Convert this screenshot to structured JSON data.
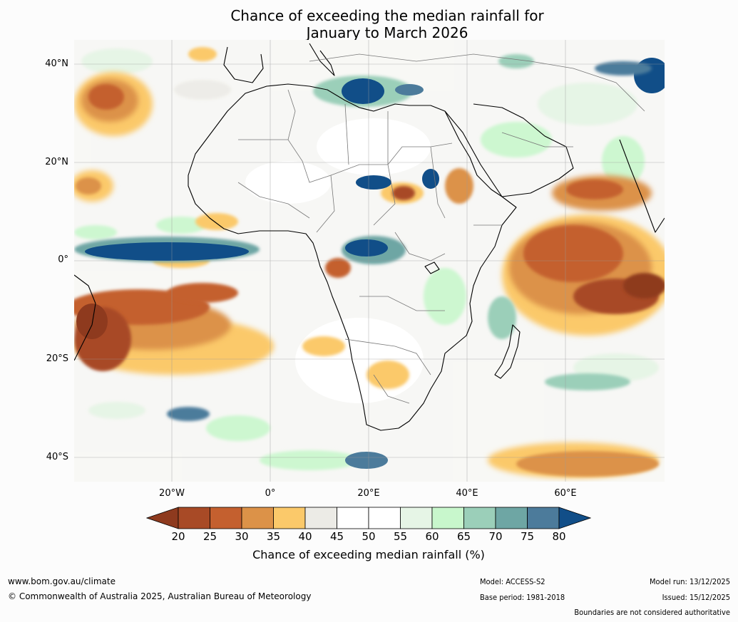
{
  "title": {
    "line1": "Chance of exceeding the median rainfall for",
    "line2": "January to March 2026"
  },
  "axes": {
    "lat_labels": [
      "40°N",
      "20°N",
      "0°",
      "20°S",
      "40°S"
    ],
    "lon_labels": [
      "20°W",
      "0°",
      "20°E",
      "40°E",
      "60°E"
    ],
    "lat_range": [
      -45,
      45
    ],
    "lon_range": [
      -40,
      80
    ]
  },
  "colorbar": {
    "ticks": [
      "20",
      "25",
      "30",
      "35",
      "40",
      "45",
      "50",
      "55",
      "60",
      "65",
      "70",
      "75",
      "80"
    ],
    "colors": [
      "#8e3a1e",
      "#a84a26",
      "#c4602f",
      "#dc9248",
      "#fbc96a",
      "#ecebe6",
      "#ffffff",
      "#ffffff",
      "#e6f5e6",
      "#c8f7cc",
      "#9bcfb9",
      "#6ea6a4",
      "#4c7b9b",
      "#114e88"
    ],
    "label": "Chance of exceeding median rainfall (%)"
  },
  "footer": {
    "url": "www.bom.gov.au/climate",
    "copyright": "© Commonwealth of Australia 2025, Australian Bureau of Meteorology",
    "model": "Model: ACCESS-S2",
    "base_period": "Base period: 1981-2018",
    "model_run": "Model run: 13/12/2025",
    "issued": "Issued: 15/12/2025",
    "disclaimer": "Boundaries are not considered authoritative"
  }
}
